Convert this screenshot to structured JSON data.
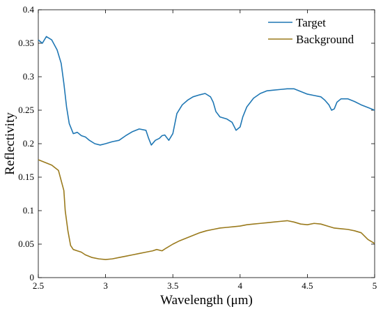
{
  "chart_data": {
    "type": "line",
    "title": "",
    "xlabel": "Wavelength (μm)",
    "ylabel": "Reflectivity",
    "xlim": [
      2.5,
      5
    ],
    "ylim": [
      0,
      0.4
    ],
    "xticks": [
      "2.5",
      "3",
      "3.5",
      "4",
      "4.5",
      "5"
    ],
    "yticks": [
      "0",
      "0.05",
      "0.1",
      "0.15",
      "0.2",
      "0.25",
      "0.3",
      "0.35",
      "0.4"
    ],
    "grid": false,
    "legend_position": "top-right",
    "series": [
      {
        "name": "Target",
        "color": "#1f77b4",
        "x": [
          2.5,
          2.53,
          2.56,
          2.6,
          2.64,
          2.67,
          2.69,
          2.71,
          2.73,
          2.76,
          2.79,
          2.82,
          2.85,
          2.88,
          2.92,
          2.96,
          3.0,
          3.05,
          3.1,
          3.15,
          3.2,
          3.25,
          3.3,
          3.32,
          3.34,
          3.37,
          3.4,
          3.42,
          3.44,
          3.47,
          3.5,
          3.53,
          3.57,
          3.61,
          3.65,
          3.7,
          3.74,
          3.78,
          3.8,
          3.82,
          3.85,
          3.9,
          3.94,
          3.97,
          4.0,
          4.02,
          4.05,
          4.1,
          4.15,
          4.2,
          4.25,
          4.3,
          4.35,
          4.4,
          4.45,
          4.5,
          4.55,
          4.6,
          4.63,
          4.66,
          4.68,
          4.7,
          4.72,
          4.75,
          4.8,
          4.85,
          4.9,
          4.95,
          5.0
        ],
        "values": [
          0.355,
          0.35,
          0.36,
          0.355,
          0.34,
          0.32,
          0.29,
          0.255,
          0.23,
          0.215,
          0.217,
          0.212,
          0.21,
          0.205,
          0.2,
          0.198,
          0.2,
          0.203,
          0.205,
          0.212,
          0.218,
          0.222,
          0.22,
          0.208,
          0.198,
          0.205,
          0.208,
          0.212,
          0.213,
          0.205,
          0.215,
          0.245,
          0.258,
          0.265,
          0.27,
          0.273,
          0.275,
          0.27,
          0.262,
          0.248,
          0.24,
          0.237,
          0.232,
          0.22,
          0.225,
          0.24,
          0.255,
          0.268,
          0.275,
          0.279,
          0.28,
          0.281,
          0.282,
          0.282,
          0.278,
          0.274,
          0.272,
          0.27,
          0.265,
          0.258,
          0.25,
          0.252,
          0.262,
          0.267,
          0.267,
          0.263,
          0.258,
          0.254,
          0.25
        ]
      },
      {
        "name": "Background",
        "color": "#9a7a1c",
        "x": [
          2.5,
          2.55,
          2.6,
          2.65,
          2.67,
          2.69,
          2.7,
          2.72,
          2.74,
          2.76,
          2.79,
          2.82,
          2.85,
          2.9,
          2.95,
          3.0,
          3.05,
          3.1,
          3.15,
          3.2,
          3.25,
          3.3,
          3.35,
          3.38,
          3.42,
          3.45,
          3.5,
          3.55,
          3.6,
          3.65,
          3.7,
          3.75,
          3.8,
          3.85,
          3.9,
          3.95,
          4.0,
          4.05,
          4.1,
          4.15,
          4.2,
          4.25,
          4.3,
          4.35,
          4.4,
          4.45,
          4.5,
          4.55,
          4.6,
          4.65,
          4.7,
          4.75,
          4.8,
          4.85,
          4.9,
          4.95,
          5.0
        ],
        "values": [
          0.176,
          0.172,
          0.168,
          0.16,
          0.145,
          0.13,
          0.1,
          0.07,
          0.048,
          0.042,
          0.04,
          0.038,
          0.034,
          0.03,
          0.028,
          0.027,
          0.028,
          0.03,
          0.032,
          0.034,
          0.036,
          0.038,
          0.04,
          0.042,
          0.04,
          0.044,
          0.05,
          0.055,
          0.059,
          0.063,
          0.067,
          0.07,
          0.072,
          0.074,
          0.075,
          0.076,
          0.077,
          0.079,
          0.08,
          0.081,
          0.082,
          0.083,
          0.084,
          0.085,
          0.083,
          0.08,
          0.079,
          0.081,
          0.08,
          0.077,
          0.074,
          0.073,
          0.072,
          0.07,
          0.067,
          0.057,
          0.051
        ]
      }
    ]
  }
}
